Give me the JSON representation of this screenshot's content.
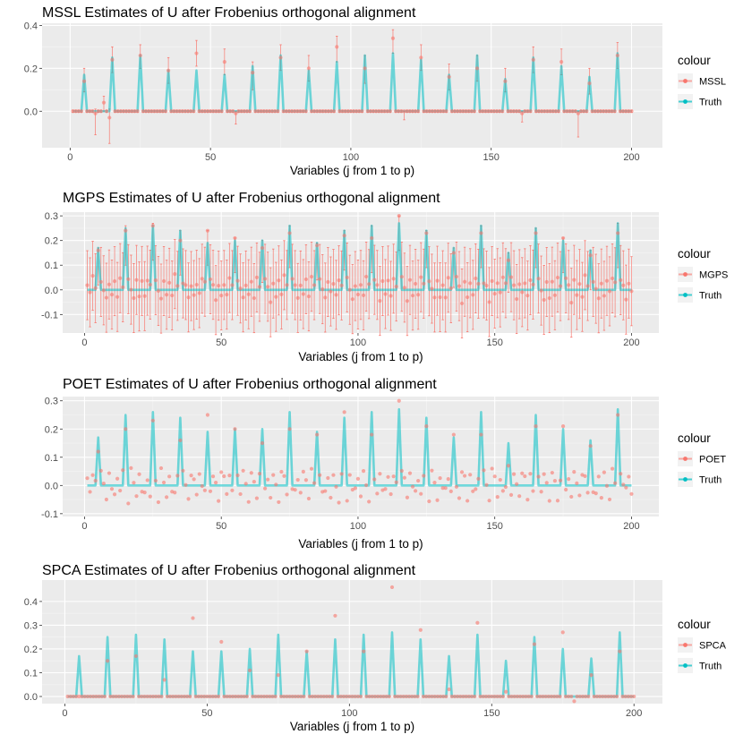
{
  "colors": {
    "estimate": "#F8766D",
    "truth": "#00BFC4",
    "panel_bg": "#EBEBEB",
    "grid_major": "#FFFFFF",
    "grid_minor": "#F5F5F5"
  },
  "chart_data": [
    {
      "type": "line+scatter",
      "title": "MSSL Estimates of U after Frobenius orthogonal alignment",
      "xlabel": "Variables (j from 1 to p)",
      "ylabel": "",
      "legend_title": "colour",
      "legend_placement": "right",
      "series_names": [
        "MSSL",
        "Truth"
      ],
      "xlim": [
        -10,
        211
      ],
      "ylim": [
        -0.17,
        0.41
      ],
      "x_ticks": [
        0,
        50,
        100,
        150,
        200
      ],
      "x_tick_labels": [
        "0",
        "50",
        "100",
        "150",
        "200"
      ],
      "y_ticks": [
        0.0,
        0.2,
        0.4
      ],
      "y_tick_labels": [
        "0.0",
        "0.2",
        "0.4"
      ],
      "peaks": [
        {
          "x": 5,
          "truth": 0.17,
          "est": 0.14,
          "lo": 0.09,
          "hi": 0.2
        },
        {
          "x": 15,
          "truth": 0.25,
          "est": 0.24,
          "lo": 0.18,
          "hi": 0.3
        },
        {
          "x": 25,
          "truth": 0.26,
          "est": 0.26,
          "lo": 0.2,
          "hi": 0.31
        },
        {
          "x": 35,
          "truth": 0.19,
          "est": 0.19,
          "lo": 0.13,
          "hi": 0.25
        },
        {
          "x": 45,
          "truth": 0.19,
          "est": 0.27,
          "lo": 0.21,
          "hi": 0.33
        },
        {
          "x": 55,
          "truth": 0.17,
          "est": 0.23,
          "lo": 0.17,
          "hi": 0.29
        },
        {
          "x": 65,
          "truth": 0.21,
          "est": 0.18,
          "lo": 0.1,
          "hi": 0.23
        },
        {
          "x": 75,
          "truth": 0.26,
          "est": 0.25,
          "lo": 0.19,
          "hi": 0.31
        },
        {
          "x": 85,
          "truth": 0.19,
          "est": 0.2,
          "lo": 0.14,
          "hi": 0.26
        },
        {
          "x": 95,
          "truth": 0.23,
          "est": 0.3,
          "lo": 0.23,
          "hi": 0.35
        },
        {
          "x": 105,
          "truth": 0.26,
          "est": 0.2,
          "lo": 0.13,
          "hi": 0.26
        },
        {
          "x": 115,
          "truth": 0.27,
          "est": 0.34,
          "lo": 0.27,
          "hi": 0.38
        },
        {
          "x": 125,
          "truth": 0.24,
          "est": 0.25,
          "lo": 0.19,
          "hi": 0.31
        },
        {
          "x": 135,
          "truth": 0.17,
          "est": 0.16,
          "lo": 0.1,
          "hi": 0.22
        },
        {
          "x": 145,
          "truth": 0.26,
          "est": 0.2,
          "lo": 0.14,
          "hi": 0.26
        },
        {
          "x": 155,
          "truth": 0.15,
          "est": 0.14,
          "lo": 0.09,
          "hi": 0.2
        },
        {
          "x": 165,
          "truth": 0.25,
          "est": 0.24,
          "lo": 0.18,
          "hi": 0.3
        },
        {
          "x": 175,
          "truth": 0.21,
          "est": 0.23,
          "lo": 0.17,
          "hi": 0.29
        },
        {
          "x": 185,
          "truth": 0.16,
          "est": 0.13,
          "lo": 0.08,
          "hi": 0.2
        },
        {
          "x": 195,
          "truth": 0.27,
          "est": 0.26,
          "lo": 0.2,
          "hi": 0.32
        }
      ],
      "offpeak_points": [
        {
          "x": 9,
          "est": -0.01,
          "lo": -0.11,
          "hi": 0.01
        },
        {
          "x": 12,
          "est": 0.04,
          "lo": 0.0,
          "hi": 0.07
        },
        {
          "x": 14,
          "est": -0.03,
          "lo": -0.15,
          "hi": 0.01
        },
        {
          "x": 59,
          "est": -0.01,
          "lo": -0.06,
          "hi": 0.0
        },
        {
          "x": 119,
          "est": 0.0,
          "lo": -0.04,
          "hi": 0.0
        },
        {
          "x": 161,
          "est": -0.01,
          "lo": -0.05,
          "hi": 0.0
        },
        {
          "x": 181,
          "est": -0.01,
          "lo": -0.12,
          "hi": 0.0
        }
      ],
      "offpeak_est": 0.0,
      "offpeak_ci": [
        -0.005,
        0.005
      ]
    },
    {
      "type": "line+scatter",
      "title": "MGPS Estimates of U after Frobenius orthogonal alignment",
      "xlabel": "Variables (j from 1 to p)",
      "ylabel": "",
      "legend_title": "colour",
      "legend_placement": "right",
      "series_names": [
        "MGPS",
        "Truth"
      ],
      "xlim": [
        -8,
        210
      ],
      "ylim": [
        -0.175,
        0.315
      ],
      "x_ticks": [
        0,
        50,
        100,
        150,
        200
      ],
      "x_tick_labels": [
        "0",
        "50",
        "100",
        "150",
        "200"
      ],
      "y_ticks": [
        -0.1,
        0.0,
        0.1,
        0.2,
        0.3
      ],
      "y_tick_labels": [
        "-0.1",
        "0.0",
        "0.1",
        "0.2",
        "0.3"
      ],
      "peaks": [
        {
          "x": 5,
          "truth": 0.17,
          "est": 0.16,
          "lo": 0.02,
          "hi": 0.17
        },
        {
          "x": 15,
          "truth": 0.25,
          "est": 0.24,
          "lo": 0.1,
          "hi": 0.26
        },
        {
          "x": 25,
          "truth": 0.26,
          "est": 0.26,
          "lo": 0.12,
          "hi": 0.27
        },
        {
          "x": 35,
          "truth": 0.24,
          "est": 0.2,
          "lo": 0.06,
          "hi": 0.24
        },
        {
          "x": 45,
          "truth": 0.19,
          "est": 0.24,
          "lo": 0.1,
          "hi": 0.24
        },
        {
          "x": 55,
          "truth": 0.2,
          "est": 0.21,
          "lo": 0.07,
          "hi": 0.21
        },
        {
          "x": 65,
          "truth": 0.2,
          "est": 0.17,
          "lo": 0.03,
          "hi": 0.2
        },
        {
          "x": 75,
          "truth": 0.26,
          "est": 0.23,
          "lo": 0.09,
          "hi": 0.26
        },
        {
          "x": 85,
          "truth": 0.19,
          "est": 0.18,
          "lo": 0.04,
          "hi": 0.19
        },
        {
          "x": 95,
          "truth": 0.24,
          "est": 0.22,
          "lo": 0.08,
          "hi": 0.24
        },
        {
          "x": 105,
          "truth": 0.26,
          "est": 0.21,
          "lo": 0.07,
          "hi": 0.26
        },
        {
          "x": 115,
          "truth": 0.27,
          "est": 0.3,
          "lo": 0.16,
          "hi": 0.3
        },
        {
          "x": 125,
          "truth": 0.24,
          "est": 0.23,
          "lo": 0.09,
          "hi": 0.24
        },
        {
          "x": 135,
          "truth": 0.17,
          "est": 0.15,
          "lo": 0.01,
          "hi": 0.17
        },
        {
          "x": 145,
          "truth": 0.26,
          "est": 0.23,
          "lo": 0.09,
          "hi": 0.26
        },
        {
          "x": 155,
          "truth": 0.15,
          "est": 0.12,
          "lo": -0.01,
          "hi": 0.15
        },
        {
          "x": 165,
          "truth": 0.25,
          "est": 0.23,
          "lo": 0.09,
          "hi": 0.25
        },
        {
          "x": 175,
          "truth": 0.2,
          "est": 0.21,
          "lo": 0.07,
          "hi": 0.21
        },
        {
          "x": 185,
          "truth": 0.16,
          "est": 0.14,
          "lo": 0.0,
          "hi": 0.16
        },
        {
          "x": 195,
          "truth": 0.27,
          "est": 0.23,
          "lo": 0.09,
          "hi": 0.27
        }
      ],
      "scatter_est": [
        -0.02,
        0.03,
        -0.02,
        0.05,
        0.02,
        -0.03,
        0.04,
        0.01,
        -0.04,
        0.03
      ],
      "errorbar_halfwidth": 0.14
    },
    {
      "type": "line+scatter",
      "title": "POET Estimates of U after Frobenius orthogonal alignment",
      "xlabel": "Variables (j from 1 to p)",
      "ylabel": "",
      "legend_title": "colour",
      "legend_placement": "right",
      "series_names": [
        "POET",
        "Truth"
      ],
      "xlim": [
        -8,
        210
      ],
      "ylim": [
        -0.11,
        0.315
      ],
      "x_ticks": [
        0,
        50,
        100,
        150,
        200
      ],
      "x_tick_labels": [
        "0",
        "50",
        "100",
        "150",
        "200"
      ],
      "y_ticks": [
        -0.1,
        0.0,
        0.1,
        0.2,
        0.3
      ],
      "y_tick_labels": [
        "-0.1",
        "0.0",
        "0.1",
        "0.2",
        "0.3"
      ],
      "peaks": [
        {
          "x": 5,
          "truth": 0.17,
          "est": 0.12
        },
        {
          "x": 15,
          "truth": 0.25,
          "est": 0.2
        },
        {
          "x": 25,
          "truth": 0.26,
          "est": 0.23
        },
        {
          "x": 35,
          "truth": 0.24,
          "est": 0.16
        },
        {
          "x": 45,
          "truth": 0.19,
          "est": 0.25
        },
        {
          "x": 55,
          "truth": 0.2,
          "est": 0.2
        },
        {
          "x": 65,
          "truth": 0.2,
          "est": 0.15
        },
        {
          "x": 75,
          "truth": 0.26,
          "est": 0.2
        },
        {
          "x": 85,
          "truth": 0.19,
          "est": 0.18
        },
        {
          "x": 95,
          "truth": 0.24,
          "est": 0.26
        },
        {
          "x": 105,
          "truth": 0.26,
          "est": 0.18
        },
        {
          "x": 115,
          "truth": 0.27,
          "est": 0.3
        },
        {
          "x": 125,
          "truth": 0.24,
          "est": 0.21
        },
        {
          "x": 135,
          "truth": 0.17,
          "est": 0.18
        },
        {
          "x": 145,
          "truth": 0.26,
          "est": 0.18
        },
        {
          "x": 155,
          "truth": 0.15,
          "est": 0.07
        },
        {
          "x": 165,
          "truth": 0.25,
          "est": 0.21
        },
        {
          "x": 175,
          "truth": 0.2,
          "est": 0.21
        },
        {
          "x": 185,
          "truth": 0.16,
          "est": 0.14
        },
        {
          "x": 195,
          "truth": 0.27,
          "est": 0.25
        }
      ],
      "scatter_est": [
        -0.02,
        0.03,
        -0.03,
        0.04,
        0.01,
        -0.05,
        0.05,
        0.02,
        -0.04,
        0.03,
        -0.01
      ]
    },
    {
      "type": "line+scatter",
      "title": "SPCA Estimates of U after Frobenius orthogonal alignment",
      "xlabel": "Variables (j from 1 to p)",
      "ylabel": "",
      "legend_title": "colour",
      "legend_placement": "right",
      "series_names": [
        "SPCA",
        "Truth"
      ],
      "xlim": [
        -8,
        210
      ],
      "ylim": [
        -0.03,
        0.49
      ],
      "x_ticks": [
        0,
        50,
        100,
        150,
        200
      ],
      "x_tick_labels": [
        "0",
        "50",
        "100",
        "150",
        "200"
      ],
      "y_ticks": [
        0.0,
        0.1,
        0.2,
        0.3,
        0.4
      ],
      "y_tick_labels": [
        "0.0",
        "0.1",
        "0.2",
        "0.3",
        "0.4"
      ],
      "peaks": [
        {
          "x": 5,
          "truth": 0.17,
          "est": 0.0
        },
        {
          "x": 15,
          "truth": 0.25,
          "est": 0.15
        },
        {
          "x": 25,
          "truth": 0.26,
          "est": 0.17
        },
        {
          "x": 35,
          "truth": 0.24,
          "est": 0.07
        },
        {
          "x": 45,
          "truth": 0.19,
          "est": 0.33
        },
        {
          "x": 55,
          "truth": 0.19,
          "est": 0.23
        },
        {
          "x": 65,
          "truth": 0.2,
          "est": 0.11
        },
        {
          "x": 75,
          "truth": 0.26,
          "est": 0.09
        },
        {
          "x": 85,
          "truth": 0.19,
          "est": 0.19
        },
        {
          "x": 95,
          "truth": 0.24,
          "est": 0.34
        },
        {
          "x": 105,
          "truth": 0.26,
          "est": 0.19
        },
        {
          "x": 115,
          "truth": 0.27,
          "est": 0.46
        },
        {
          "x": 125,
          "truth": 0.24,
          "est": 0.28
        },
        {
          "x": 135,
          "truth": 0.17,
          "est": 0.03
        },
        {
          "x": 145,
          "truth": 0.26,
          "est": 0.31
        },
        {
          "x": 155,
          "truth": 0.15,
          "est": 0.02
        },
        {
          "x": 165,
          "truth": 0.25,
          "est": 0.22
        },
        {
          "x": 175,
          "truth": 0.2,
          "est": 0.27
        },
        {
          "x": 185,
          "truth": 0.16,
          "est": 0.09
        },
        {
          "x": 195,
          "truth": 0.27,
          "est": 0.19
        }
      ],
      "offpeak_points": [
        {
          "x": 179,
          "est": -0.02
        }
      ],
      "offpeak_est": 0.0
    }
  ]
}
